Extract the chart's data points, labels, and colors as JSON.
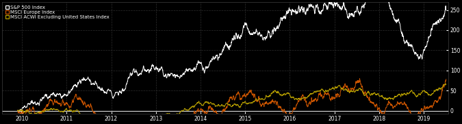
{
  "background_color": "#000000",
  "plot_bg_color": "#000000",
  "text_color": "#ffffff",
  "series": {
    "sp500": {
      "label": "S&P 500 Index",
      "color": "#ffffff",
      "lw": 0.7
    },
    "msci_europe": {
      "label": "MSCI Europe Index",
      "color": "#cc5500",
      "lw": 0.7
    },
    "msci_acwi": {
      "label": "MSCI ACWI Excluding United States Index",
      "color": "#b8a000",
      "lw": 0.7
    }
  },
  "yticks": [
    0,
    50,
    100,
    150,
    200,
    250
  ],
  "ylim": [
    -8,
    270
  ],
  "xtick_positions": [
    2010,
    2011,
    2012,
    2013,
    2014,
    2015,
    2016,
    2017,
    2018,
    2019
  ],
  "xtick_labels": [
    "2010",
    "2011",
    "2012",
    "2013",
    "2014",
    "2015",
    "2016",
    "2017",
    "2018",
    "2019"
  ],
  "xlim": [
    2009.55,
    2019.55
  ],
  "n_points": 2400,
  "start_year": 2009.9,
  "end_year": 2019.5
}
